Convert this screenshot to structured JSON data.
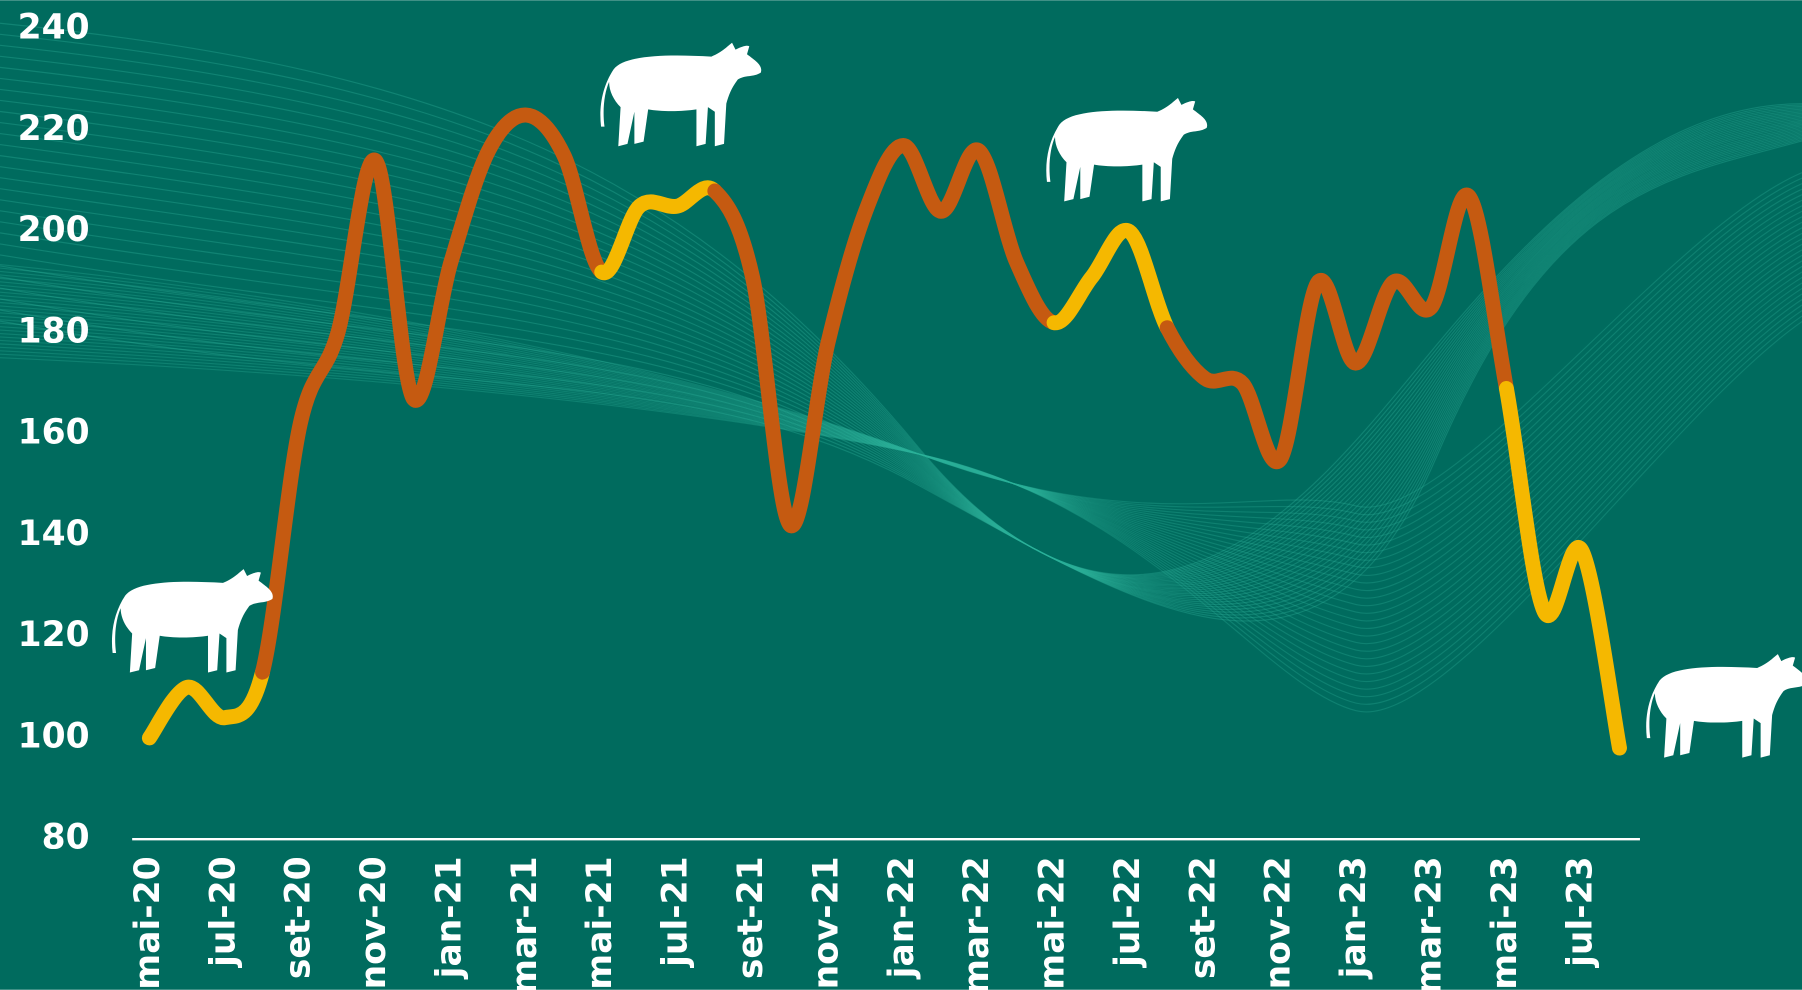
{
  "chart_data": {
    "type": "line",
    "categories": [
      "mai-20",
      null,
      "jul-20",
      null,
      "set-20",
      null,
      "nov-20",
      null,
      "jan-21",
      null,
      "mar-21",
      null,
      "mai-21",
      null,
      "jul-21",
      null,
      "set-21",
      null,
      "nov-21",
      null,
      "jan-22",
      null,
      "mar-22",
      null,
      "mai-22",
      null,
      "jul-22",
      null,
      "set-22",
      null,
      "nov-22",
      null,
      "jan-23",
      null,
      "mar-23",
      null,
      "mai-23",
      null,
      "jul-23",
      null
    ],
    "values": [
      100,
      110,
      104,
      113,
      162,
      180,
      214,
      167,
      194,
      216,
      223,
      215,
      192,
      205,
      205,
      208,
      191,
      142,
      178,
      204,
      217,
      204,
      216,
      194,
      182,
      191,
      200,
      181,
      171,
      170,
      155,
      190,
      174,
      190,
      185,
      207,
      169,
      125,
      137,
      98
    ],
    "colors": [
      "#f5b800",
      "#f5b800",
      "#f5b800",
      "#c55a11",
      "#c55a11",
      "#c55a11",
      "#c55a11",
      "#c55a11",
      "#c55a11",
      "#c55a11",
      "#c55a11",
      "#c55a11",
      "#f5b800",
      "#f5b800",
      "#f5b800",
      "#c55a11",
      "#c55a11",
      "#c55a11",
      "#c55a11",
      "#c55a11",
      "#c55a11",
      "#c55a11",
      "#c55a11",
      "#c55a11",
      "#f5b800",
      "#f5b800",
      "#f5b800",
      "#c55a11",
      "#c55a11",
      "#c55a11",
      "#c55a11",
      "#c55a11",
      "#c55a11",
      "#c55a11",
      "#c55a11",
      "#c55a11",
      "#f5b800",
      "#f5b800",
      "#f5b800",
      "#f5b800"
    ],
    "ylim": [
      80,
      240
    ],
    "yticks": [
      80,
      100,
      120,
      140,
      160,
      180,
      200,
      220,
      240
    ],
    "background": "#006b5e"
  }
}
